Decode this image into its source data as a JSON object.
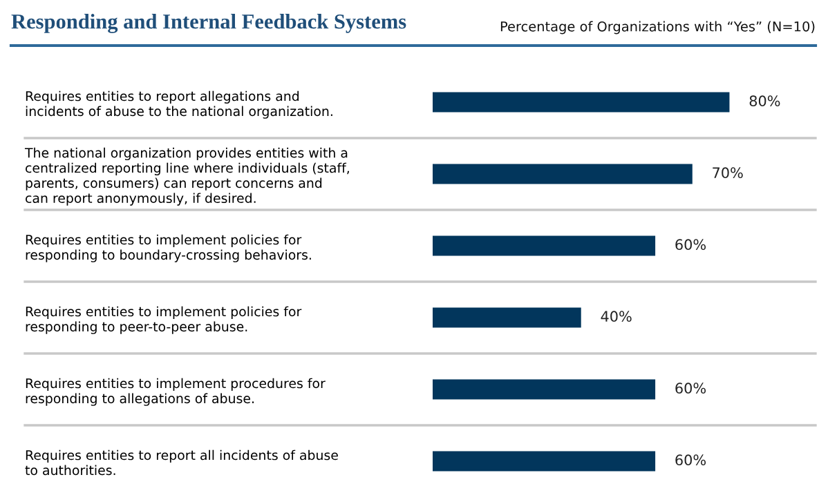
{
  "chart_data": {
    "type": "bar",
    "orientation": "horizontal",
    "title": "Responding and Internal Feedback Systems",
    "subtitle": "Percentage of Organizations with “Yes” (N=10)",
    "categories": [
      "Requires entities to report allegations and\nincidents of abuse to the national organization.",
      "The national organization provides entities with a\ncentralized reporting line where individuals (staff,\nparents, consumers) can report concerns and\ncan report anonymously, if desired.",
      "Requires entities to implement policies for\nresponding to boundary-crossing behaviors.",
      "Requires entities to implement policies for\nresponding to peer-to-peer abuse.",
      "Requires entities to implement procedures for\nresponding to allegations of abuse.",
      "Requires entities to report all incidents of abuse\nto authorities."
    ],
    "values": [
      80,
      70,
      60,
      40,
      60,
      60
    ],
    "value_labels": [
      "80%",
      "70%",
      "60%",
      "40%",
      "60%",
      "60%"
    ],
    "color": "#02365c"
  }
}
